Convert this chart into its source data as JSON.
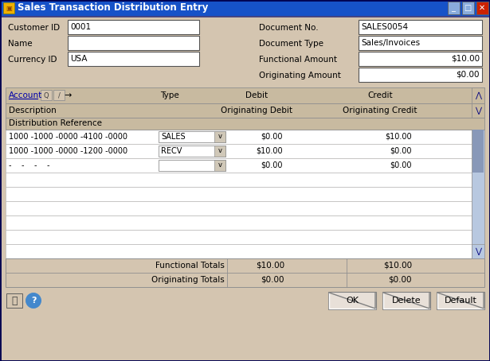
{
  "title": "Sales Transaction Distribution Entry",
  "title_bar_color": "#1652c8",
  "title_text_color": "#ffffff",
  "window_bg": "#d4c5b0",
  "field_bg": "#ffffff",
  "table_header_bg": "#c8baa0",
  "table_row_bg": "#ffffff",
  "scrollbar_bg": "#b8c8e0",
  "scrollbar_thumb": "#8898b8",
  "left_labels": [
    "Customer ID",
    "Name",
    "Currency ID"
  ],
  "left_values": [
    "0001",
    "",
    "USA"
  ],
  "right_labels": [
    "Document No.",
    "Document Type",
    "Functional Amount",
    "Originating Amount"
  ],
  "right_values": [
    "SALES0054",
    "Sales/Invoices",
    "$10.00",
    "$0.00"
  ],
  "col_subheader": "Distribution Reference",
  "account_col": [
    "1000 -1000 -0000 -4100 -0000",
    "1000 -1000 -0000 -1200 -0000",
    "-    -    -    -"
  ],
  "type_col": [
    "SALES",
    "RECV",
    ""
  ],
  "debit_col": [
    "$0.00",
    "$10.00",
    "$0.00"
  ],
  "credit_col": [
    "$10.00",
    "$0.00",
    "$0.00"
  ],
  "empty_rows": 6,
  "functional_totals": [
    "$10.00",
    "$10.00"
  ],
  "originating_totals": [
    "$0.00",
    "$0.00"
  ],
  "buttons": [
    "OK",
    "Delete",
    "Default"
  ],
  "blue_link_color": "#0000aa",
  "border_dark": "#808080",
  "border_light": "#ffffff"
}
